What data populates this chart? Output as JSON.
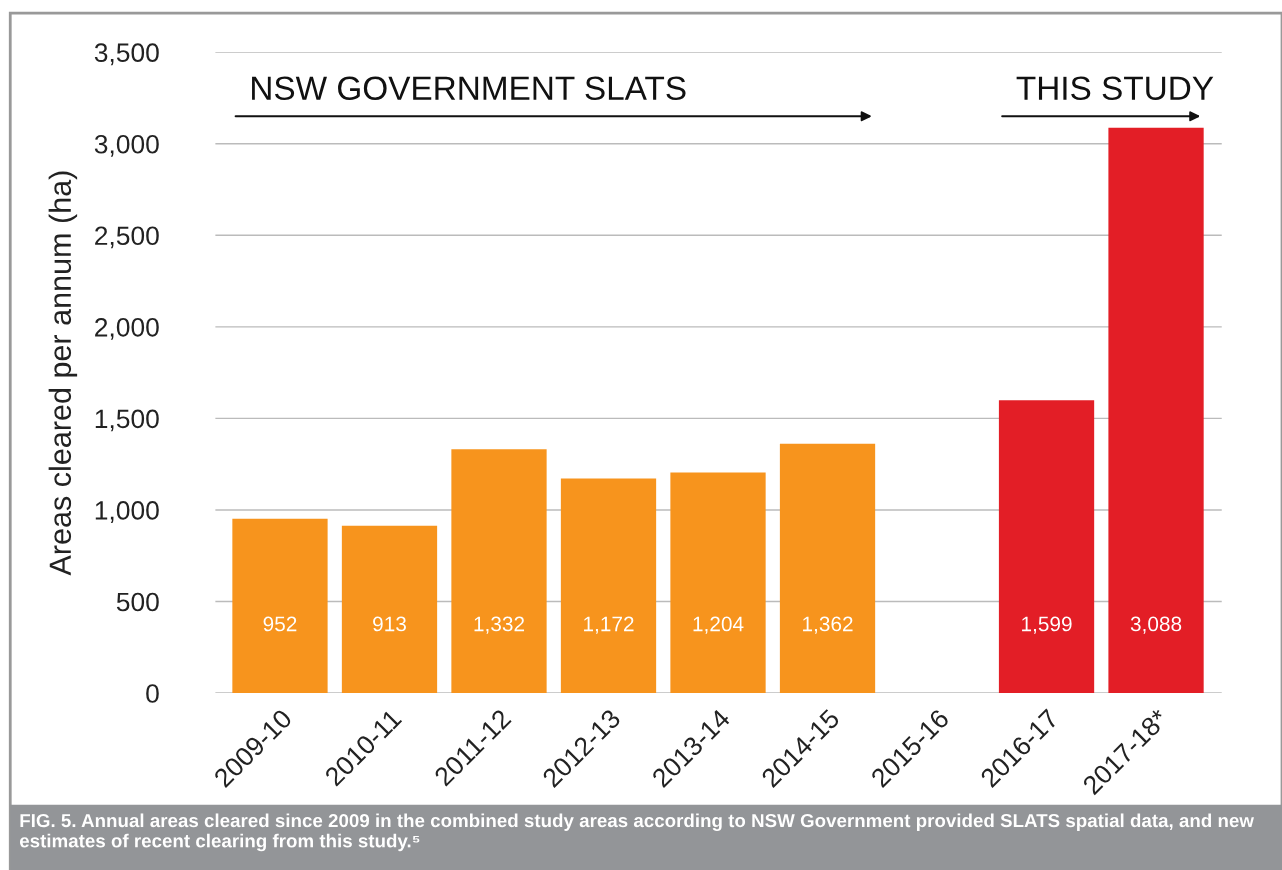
{
  "chart_data": {
    "type": "bar",
    "ylabel": "Areas cleared per annum (ha)",
    "categories": [
      "2009-10",
      "2010-11",
      "2011-12",
      "2012-13",
      "2013-14",
      "2014-15",
      "2015-16",
      "2016-17",
      "2017-18*"
    ],
    "values": [
      952,
      913,
      1332,
      1172,
      1204,
      1362,
      null,
      1599,
      3088
    ],
    "colors": [
      "#f7941d",
      "#f7941d",
      "#f7941d",
      "#f7941d",
      "#f7941d",
      "#f7941d",
      "#f7941d",
      "#e31e26",
      "#e31e26"
    ],
    "value_labels": [
      "952",
      "913",
      "1,332",
      "1,172",
      "1,204",
      "1,362",
      null,
      "1,599",
      "3,088"
    ],
    "ylim": [
      0,
      3500
    ],
    "yticks": [
      {
        "value": 0,
        "label": "0"
      },
      {
        "value": 500,
        "label": "500"
      },
      {
        "value": 1000,
        "label": "1,000"
      },
      {
        "value": 1500,
        "label": "1,500"
      },
      {
        "value": 2000,
        "label": "2,000"
      },
      {
        "value": 2500,
        "label": "2,500"
      },
      {
        "value": 3000,
        "label": "3,000"
      },
      {
        "value": 3500,
        "label": "3,500"
      }
    ],
    "grid": "y",
    "annotations": [
      "NSW GOVERNMENT SLATS",
      "THIS STUDY",
      "FIG. 5. Annual areas cleared since 2009 in the combined study areas according to NSW Government provided SLATS spatial data, and new estimates of recent clearing from this study.⁵"
    ]
  }
}
